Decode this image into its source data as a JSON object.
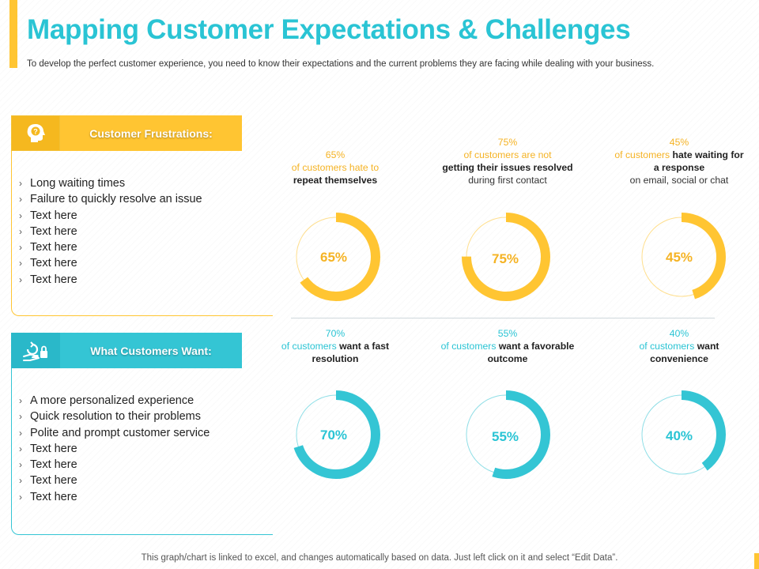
{
  "page": {
    "title": "Mapping Customer Expectations & Challenges",
    "subtitle": "To develop the perfect customer experience, you need to know their expectations and the current problems they are facing while dealing with your business."
  },
  "sections": {
    "frustrations": {
      "label": "Customer Frustrations:",
      "icon": "head-question-icon",
      "items": [
        "Long waiting times",
        "Failure to quickly resolve an issue",
        "Text here",
        "Text here",
        "Text here",
        "Text here",
        "Text here"
      ]
    },
    "wants": {
      "label": "What Customers Want:",
      "icon": "hand-lock-icon",
      "items": [
        "A more personalized experience",
        "Quick resolution to their problems",
        "Polite and prompt customer service",
        "Text here",
        "Text here",
        "Text here",
        "Text here"
      ]
    }
  },
  "chart_data": [
    {
      "type": "pie",
      "title": "Customer Frustrations",
      "color": "#ffc532",
      "series": [
        {
          "name": "Repeat themselves",
          "value": 65,
          "value_label": "65%",
          "percent_text": "65%",
          "highlight": "of customers hate to",
          "bold": "repeat themselves",
          "rest": ""
        },
        {
          "name": "Issues not resolved on first contact",
          "value": 75,
          "value_label": "75%",
          "percent_text": "75%",
          "highlight": "of customers are not",
          "bold": "getting their issues resolved",
          "rest": "during first contact"
        },
        {
          "name": "Waiting for a response",
          "value": 45,
          "value_label": "45%",
          "percent_text": "45%",
          "highlight": "of customers",
          "bold": "hate waiting for a response",
          "rest": "on email, social or chat"
        }
      ]
    },
    {
      "type": "pie",
      "title": "What Customers Want",
      "color": "#34c5d4",
      "series": [
        {
          "name": "Fast resolution",
          "value": 70,
          "value_label": "70%",
          "percent_text": "70%",
          "highlight": "of customers",
          "bold": "want a fast resolution",
          "rest": ""
        },
        {
          "name": "Favorable outcome",
          "value": 55,
          "value_label": "55%",
          "percent_text": "55%",
          "highlight": "of customers",
          "bold": "want a favorable outcome",
          "rest": ""
        },
        {
          "name": "Convenience",
          "value": 40,
          "value_label": "40%",
          "percent_text": "40%",
          "highlight": "of customers",
          "bold": "want convenience",
          "rest": ""
        }
      ]
    }
  ],
  "footnote": "This graph/chart is linked to excel, and changes automatically based on data. Just left click on it and select “Edit Data”."
}
